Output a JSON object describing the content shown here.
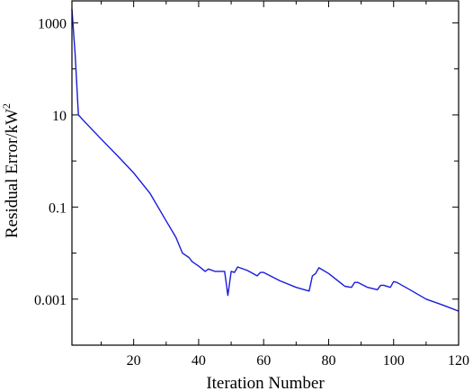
{
  "chart_data": {
    "type": "line",
    "title": "",
    "xlabel": "Iteration Number",
    "ylabel_main": "Residual Error/kW",
    "ylabel_sup": "2",
    "x_scale": "linear",
    "y_scale": "log",
    "xlim": [
      1,
      120
    ],
    "ylim": [
      0.0001,
      3000
    ],
    "x_ticks": [
      20,
      40,
      60,
      80,
      100,
      120
    ],
    "x_tick_labels": [
      "20",
      "40",
      "60",
      "80",
      "100",
      "120"
    ],
    "y_ticks": [
      0.001,
      0.1,
      10,
      1000
    ],
    "y_tick_labels": [
      "0.001",
      "0.1",
      "10",
      "1000"
    ],
    "grid": false,
    "legend": "none",
    "line_color": "#1a1adc",
    "series": [
      {
        "x": [
          1,
          2,
          3,
          5,
          10,
          15,
          20,
          25,
          30,
          33,
          35,
          37,
          38,
          40,
          42,
          43,
          45,
          48,
          49,
          50,
          51,
          52,
          55,
          58,
          59,
          60,
          65,
          70,
          74,
          75,
          76,
          77,
          80,
          85,
          87,
          88,
          89,
          92,
          95,
          96,
          97,
          99,
          100,
          101,
          105,
          110,
          115,
          120
        ],
        "y": [
          2000,
          200,
          10,
          7,
          3,
          1.3,
          0.55,
          0.2,
          0.05,
          0.022,
          0.01,
          0.008,
          0.0065,
          0.0052,
          0.004,
          0.0045,
          0.004,
          0.004,
          0.0012,
          0.004,
          0.0038,
          0.005,
          0.0042,
          0.0032,
          0.0038,
          0.0038,
          0.0025,
          0.0018,
          0.0015,
          0.0032,
          0.0036,
          0.0048,
          0.0036,
          0.0019,
          0.0018,
          0.0023,
          0.0023,
          0.0018,
          0.0016,
          0.002,
          0.002,
          0.0018,
          0.0024,
          0.0023,
          0.0016,
          0.001,
          0.00075,
          0.00055
        ]
      }
    ]
  }
}
